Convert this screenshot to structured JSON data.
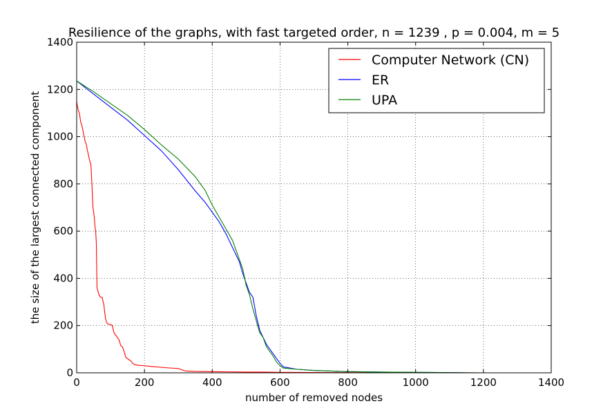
{
  "chart_data": {
    "type": "line",
    "title": "Resilience of the graphs, with fast targeted order, n = 1239 , p = 0.004, m = 5",
    "xlabel": "number of removed nodes",
    "ylabel": "the size of the largest connected component",
    "xlim": [
      0,
      1400
    ],
    "ylim": [
      0,
      1400
    ],
    "xticks": [
      0,
      200,
      400,
      600,
      800,
      1000,
      1200,
      1400
    ],
    "yticks": [
      0,
      200,
      400,
      600,
      800,
      1000,
      1200,
      1400
    ],
    "xtick_labels": [
      "0",
      "200",
      "400",
      "600",
      "800",
      "1000",
      "1200",
      "1400"
    ],
    "ytick_labels": [
      "0",
      "200",
      "400",
      "600",
      "800",
      "1000",
      "1200",
      "1400"
    ],
    "grid": true,
    "legend_position": "top-right",
    "series": [
      {
        "name": "Computer Network (CN)",
        "color": "#ff0000",
        "x": [
          0,
          2,
          5,
          8,
          12,
          15,
          18,
          22,
          25,
          28,
          32,
          35,
          38,
          42,
          45,
          48,
          50,
          52,
          54,
          56,
          58,
          60,
          62,
          64,
          66,
          68,
          70,
          75,
          80,
          85,
          88,
          90,
          95,
          100,
          105,
          110,
          115,
          120,
          125,
          130,
          135,
          140,
          145,
          150,
          155,
          160,
          165,
          170,
          180,
          200,
          220,
          260,
          300,
          320,
          350,
          400,
          450,
          500,
          550,
          600,
          800,
          1000,
          1200,
          1239
        ],
        "y": [
          1150,
          1130,
          1110,
          1100,
          1060,
          1050,
          1030,
          1000,
          980,
          970,
          940,
          920,
          900,
          880,
          800,
          700,
          680,
          660,
          620,
          600,
          550,
          360,
          350,
          340,
          330,
          325,
          320,
          320,
          290,
          230,
          215,
          210,
          205,
          205,
          200,
          170,
          160,
          150,
          140,
          115,
          110,
          90,
          65,
          60,
          55,
          50,
          40,
          35,
          32,
          30,
          27,
          22,
          18,
          8,
          6,
          5,
          4,
          3,
          3,
          2,
          1,
          1,
          0,
          0
        ]
      },
      {
        "name": "ER",
        "color": "#0000ff",
        "x": [
          0,
          50,
          100,
          150,
          200,
          250,
          300,
          350,
          380,
          400,
          420,
          440,
          460,
          480,
          490,
          500,
          510,
          520,
          530,
          540,
          550,
          560,
          570,
          580,
          590,
          600,
          610,
          650,
          700,
          800,
          900,
          1000,
          1100,
          1150
        ],
        "y": [
          1236,
          1180,
          1125,
          1070,
          1005,
          940,
          860,
          770,
          720,
          680,
          640,
          590,
          530,
          470,
          420,
          380,
          340,
          320,
          240,
          180,
          150,
          120,
          100,
          80,
          60,
          40,
          25,
          15,
          10,
          5,
          3,
          2,
          1,
          0
        ]
      },
      {
        "name": "UPA",
        "color": "#008000",
        "x": [
          0,
          50,
          100,
          150,
          200,
          250,
          300,
          350,
          380,
          400,
          420,
          440,
          460,
          480,
          490,
          500,
          510,
          520,
          530,
          540,
          550,
          560,
          570,
          580,
          590,
          600,
          610,
          650,
          700,
          800,
          900,
          1000,
          1100,
          1200,
          1239
        ],
        "y": [
          1236,
          1190,
          1140,
          1090,
          1030,
          965,
          905,
          830,
          770,
          710,
          660,
          610,
          560,
          480,
          440,
          370,
          330,
          270,
          220,
          170,
          150,
          110,
          90,
          70,
          45,
          30,
          20,
          15,
          10,
          5,
          3,
          2,
          1,
          0,
          0
        ]
      }
    ]
  }
}
